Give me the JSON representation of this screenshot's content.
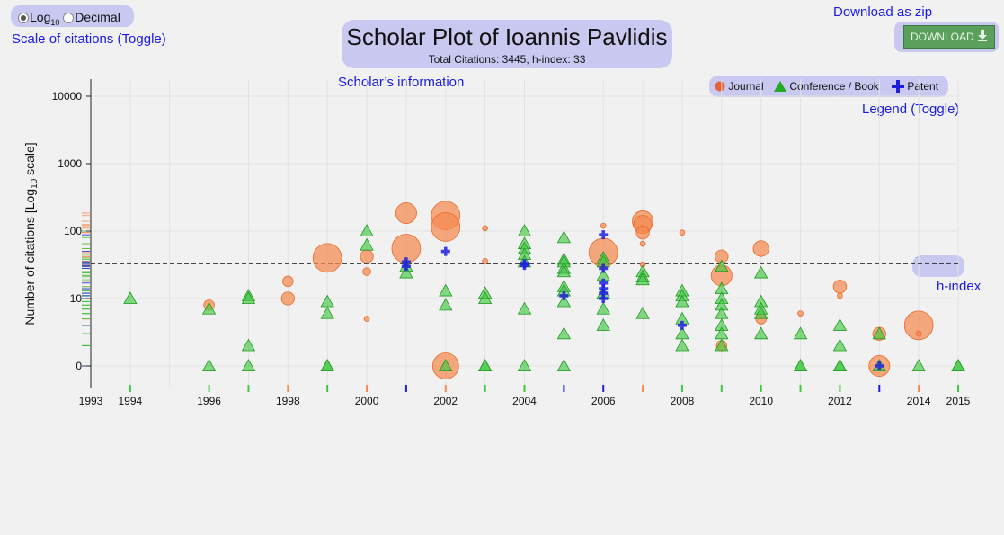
{
  "scale_toggle": {
    "log_label": "Log",
    "log_sub": "10",
    "decimal_label": "Decimal",
    "selected": "log",
    "caption": "Scale of citations (Toggle)"
  },
  "header": {
    "title": "Scholar Plot of Ioannis Pavlidis",
    "subtitle": "Total Citations: 3445, h-index: 33",
    "info_link": "Scholar’s information"
  },
  "download": {
    "link": "Download as zip",
    "button_label": "DOWNLOAD"
  },
  "legend": {
    "journal": "Journal",
    "conference": "Conference / Book",
    "patent": "Patent",
    "caption": "Legend (Toggle)"
  },
  "hindex_label": "h-index",
  "colors": {
    "journal": "#f5894f",
    "conference": "#3ec83e",
    "patent": "#1f1fe0",
    "accent_link": "#1a1ae6"
  },
  "chart_data": {
    "type": "scatter",
    "title": "Scholar Plot of Ioannis Pavlidis",
    "xlabel": "",
    "ylabel_main": "Number of citations [Log",
    "ylabel_sub": "10",
    "ylabel_end": " scale]",
    "y_scale": "log10",
    "yticks": [
      0,
      10,
      100,
      1000,
      10000
    ],
    "xticks": [
      1993,
      1994,
      1996,
      1998,
      2000,
      2002,
      2004,
      2006,
      2008,
      2010,
      2012,
      2014,
      2015
    ],
    "xlim": [
      1993,
      2015
    ],
    "h_index": 33,
    "grid": true,
    "legend_position": "top-right",
    "series": [
      {
        "name": "Journal",
        "marker": "circle",
        "points": [
          {
            "x": 1996,
            "y": 8
          },
          {
            "x": 1998,
            "y": 10
          },
          {
            "x": 1998,
            "y": 18
          },
          {
            "x": 1999,
            "y": 40
          },
          {
            "x": 2000,
            "y": 42
          },
          {
            "x": 2000,
            "y": 25
          },
          {
            "x": 2000,
            "y": 5
          },
          {
            "x": 2001,
            "y": 185
          },
          {
            "x": 2001,
            "y": 55
          },
          {
            "x": 2002,
            "y": 170
          },
          {
            "x": 2002,
            "y": 115
          },
          {
            "x": 2002,
            "y": 0
          },
          {
            "x": 2003,
            "y": 110
          },
          {
            "x": 2003,
            "y": 36
          },
          {
            "x": 2006,
            "y": 120
          },
          {
            "x": 2006,
            "y": 48
          },
          {
            "x": 2006,
            "y": 30
          },
          {
            "x": 2007,
            "y": 140
          },
          {
            "x": 2007,
            "y": 125
          },
          {
            "x": 2007,
            "y": 95
          },
          {
            "x": 2007,
            "y": 65
          },
          {
            "x": 2007,
            "y": 32
          },
          {
            "x": 2008,
            "y": 95
          },
          {
            "x": 2009,
            "y": 42
          },
          {
            "x": 2009,
            "y": 22
          },
          {
            "x": 2009,
            "y": 2
          },
          {
            "x": 2010,
            "y": 55
          },
          {
            "x": 2010,
            "y": 5
          },
          {
            "x": 2011,
            "y": 6
          },
          {
            "x": 2012,
            "y": 15
          },
          {
            "x": 2012,
            "y": 11
          },
          {
            "x": 2013,
            "y": 3
          },
          {
            "x": 2013,
            "y": 0
          },
          {
            "x": 2014,
            "y": 4
          },
          {
            "x": 2014,
            "y": 3
          }
        ]
      },
      {
        "name": "Conference / Book",
        "marker": "triangle",
        "points": [
          {
            "x": 1994,
            "y": 10
          },
          {
            "x": 1996,
            "y": 7
          },
          {
            "x": 1996,
            "y": 0
          },
          {
            "x": 1997,
            "y": 11
          },
          {
            "x": 1997,
            "y": 10
          },
          {
            "x": 1997,
            "y": 2
          },
          {
            "x": 1997,
            "y": 0
          },
          {
            "x": 1999,
            "y": 9
          },
          {
            "x": 1999,
            "y": 6
          },
          {
            "x": 1999,
            "y": 0
          },
          {
            "x": 1999,
            "y": 0
          },
          {
            "x": 2000,
            "y": 100
          },
          {
            "x": 2000,
            "y": 62
          },
          {
            "x": 2001,
            "y": 30
          },
          {
            "x": 2001,
            "y": 24
          },
          {
            "x": 2002,
            "y": 13
          },
          {
            "x": 2002,
            "y": 8
          },
          {
            "x": 2002,
            "y": 0
          },
          {
            "x": 2003,
            "y": 12
          },
          {
            "x": 2003,
            "y": 10
          },
          {
            "x": 2003,
            "y": 0
          },
          {
            "x": 2003,
            "y": 0
          },
          {
            "x": 2004,
            "y": 100
          },
          {
            "x": 2004,
            "y": 65
          },
          {
            "x": 2004,
            "y": 55
          },
          {
            "x": 2004,
            "y": 45
          },
          {
            "x": 2004,
            "y": 35
          },
          {
            "x": 2004,
            "y": 7
          },
          {
            "x": 2004,
            "y": 0
          },
          {
            "x": 2005,
            "y": 80
          },
          {
            "x": 2005,
            "y": 38
          },
          {
            "x": 2005,
            "y": 35
          },
          {
            "x": 2005,
            "y": 28
          },
          {
            "x": 2005,
            "y": 25
          },
          {
            "x": 2005,
            "y": 15
          },
          {
            "x": 2005,
            "y": 13
          },
          {
            "x": 2005,
            "y": 9
          },
          {
            "x": 2005,
            "y": 3
          },
          {
            "x": 2005,
            "y": 0
          },
          {
            "x": 2006,
            "y": 40
          },
          {
            "x": 2006,
            "y": 35
          },
          {
            "x": 2006,
            "y": 22
          },
          {
            "x": 2006,
            "y": 12
          },
          {
            "x": 2006,
            "y": 7
          },
          {
            "x": 2006,
            "y": 4
          },
          {
            "x": 2007,
            "y": 25
          },
          {
            "x": 2007,
            "y": 21
          },
          {
            "x": 2007,
            "y": 19
          },
          {
            "x": 2007,
            "y": 6
          },
          {
            "x": 2008,
            "y": 13
          },
          {
            "x": 2008,
            "y": 11
          },
          {
            "x": 2008,
            "y": 9
          },
          {
            "x": 2008,
            "y": 5
          },
          {
            "x": 2008,
            "y": 3
          },
          {
            "x": 2008,
            "y": 2
          },
          {
            "x": 2009,
            "y": 30
          },
          {
            "x": 2009,
            "y": 14
          },
          {
            "x": 2009,
            "y": 10
          },
          {
            "x": 2009,
            "y": 8
          },
          {
            "x": 2009,
            "y": 6
          },
          {
            "x": 2009,
            "y": 4
          },
          {
            "x": 2009,
            "y": 3
          },
          {
            "x": 2009,
            "y": 2
          },
          {
            "x": 2010,
            "y": 24
          },
          {
            "x": 2010,
            "y": 9
          },
          {
            "x": 2010,
            "y": 7
          },
          {
            "x": 2010,
            "y": 6
          },
          {
            "x": 2010,
            "y": 3
          },
          {
            "x": 2011,
            "y": 3
          },
          {
            "x": 2011,
            "y": 0
          },
          {
            "x": 2011,
            "y": 0
          },
          {
            "x": 2012,
            "y": 4
          },
          {
            "x": 2012,
            "y": 2
          },
          {
            "x": 2012,
            "y": 0
          },
          {
            "x": 2012,
            "y": 0
          },
          {
            "x": 2013,
            "y": 3
          },
          {
            "x": 2013,
            "y": 0
          },
          {
            "x": 2014,
            "y": 0
          },
          {
            "x": 2015,
            "y": 0
          },
          {
            "x": 2015,
            "y": 0
          }
        ]
      },
      {
        "name": "Patent",
        "marker": "cross",
        "points": [
          {
            "x": 2001,
            "y": 35
          },
          {
            "x": 2001,
            "y": 30
          },
          {
            "x": 2002,
            "y": 50
          },
          {
            "x": 2004,
            "y": 33
          },
          {
            "x": 2004,
            "y": 31
          },
          {
            "x": 2005,
            "y": 11
          },
          {
            "x": 2006,
            "y": 88
          },
          {
            "x": 2006,
            "y": 28
          },
          {
            "x": 2006,
            "y": 17
          },
          {
            "x": 2006,
            "y": 14
          },
          {
            "x": 2006,
            "y": 12
          },
          {
            "x": 2006,
            "y": 10
          },
          {
            "x": 2008,
            "y": 4
          },
          {
            "x": 2013,
            "y": 0
          }
        ]
      }
    ],
    "journal_sizes": [
      4,
      5,
      4,
      11,
      5,
      3,
      2,
      8,
      11,
      11,
      11,
      10,
      2,
      2,
      2,
      11,
      2,
      8,
      7,
      5,
      2,
      2,
      2,
      5,
      8,
      4,
      6,
      4,
      2,
      5,
      2,
      5,
      8,
      11,
      2
    ]
  }
}
